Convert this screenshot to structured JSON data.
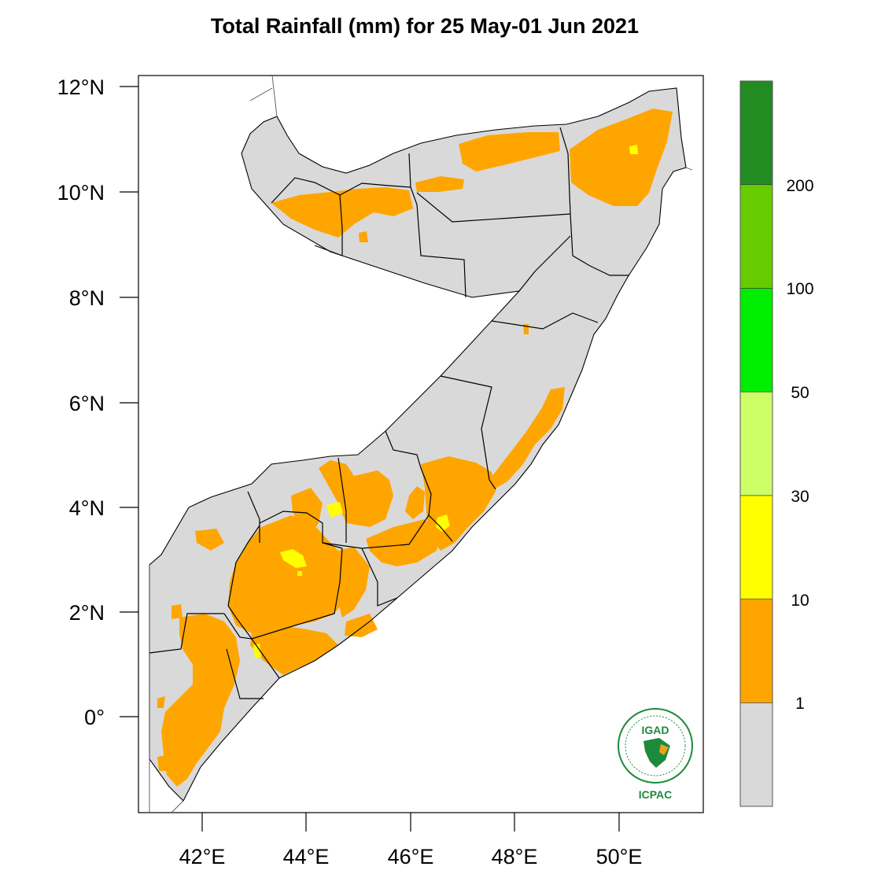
{
  "map": {
    "title": "Total Rainfall (mm) for 25 May-01 Jun 2021",
    "lat_ticks": [
      "12°N",
      "10°N",
      "8°N",
      "6°N",
      "4°N",
      "2°N",
      "0°"
    ],
    "lon_ticks": [
      "42°E",
      "44°E",
      "46°E",
      "48°E",
      "50°E"
    ],
    "colorbar": {
      "labels": [
        "1",
        "10",
        "30",
        "50",
        "100",
        "200"
      ],
      "colors": [
        "#d9d9d9",
        "#ffa500",
        "#ffff00",
        "#ccff66",
        "#00ee00",
        "#66cc00",
        "#228b22"
      ]
    },
    "logo": {
      "top_text": "IGAD",
      "bottom_text": "ICPAC"
    }
  }
}
